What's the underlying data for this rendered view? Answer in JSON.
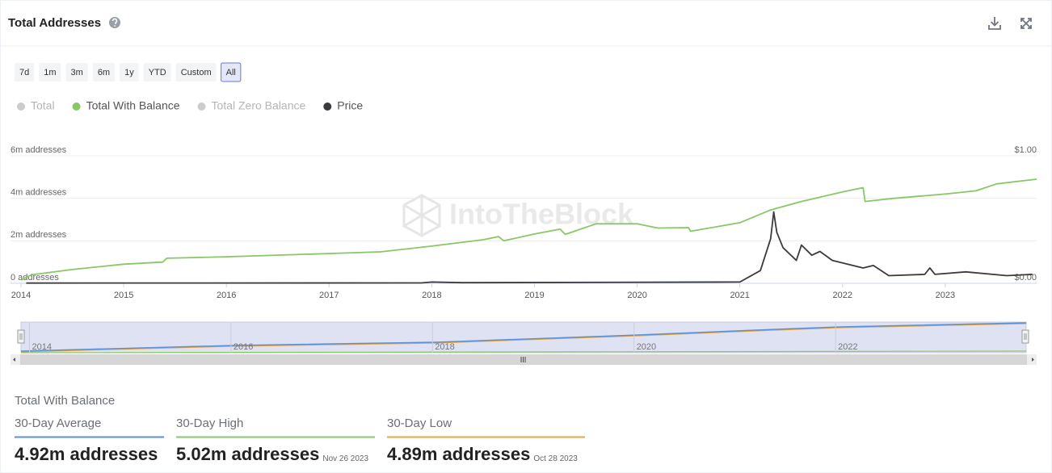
{
  "header": {
    "title": "Total Addresses"
  },
  "range_buttons": [
    "7d",
    "1m",
    "3m",
    "6m",
    "1y",
    "YTD",
    "Custom",
    "All"
  ],
  "selected_range_index": 7,
  "watermark": "IntoTheBlock",
  "chart_data": {
    "type": "line",
    "series": [
      {
        "name": "Total",
        "color": "#cccccc",
        "visible": false
      },
      {
        "name": "Total With Balance",
        "color": "#88c766",
        "x": [
          2014.0,
          2014.1,
          2014.5,
          2015.0,
          2015.38,
          2015.42,
          2016.0,
          2017.0,
          2017.5,
          2018.0,
          2018.5,
          2018.65,
          2018.7,
          2019.0,
          2019.25,
          2019.3,
          2019.6,
          2020.0,
          2020.2,
          2020.5,
          2020.52,
          2021.0,
          2021.3,
          2021.6,
          2022.0,
          2022.2,
          2022.22,
          2022.5,
          2023.0,
          2023.3,
          2023.5,
          2023.89
        ],
        "values": [
          150000,
          400000,
          650000,
          900000,
          1000000,
          1180000,
          1250000,
          1400000,
          1480000,
          1750000,
          2050000,
          2200000,
          2000000,
          2320000,
          2550000,
          2300000,
          2800000,
          2800000,
          2600000,
          2620000,
          2450000,
          2850000,
          3450000,
          3850000,
          4300000,
          4500000,
          3850000,
          4000000,
          4200000,
          4350000,
          4680000,
          4900000
        ]
      },
      {
        "name": "Total Zero Balance",
        "color": "#cccccc",
        "visible": false
      },
      {
        "name": "Price",
        "color": "#3a3a3f",
        "axis": "y2",
        "x": [
          2014.05,
          2017.9,
          2018.0,
          2018.3,
          2021.0,
          2021.2,
          2021.3,
          2021.33,
          2021.36,
          2021.42,
          2021.55,
          2021.6,
          2021.7,
          2021.78,
          2021.9,
          2022.0,
          2022.2,
          2022.3,
          2022.45,
          2022.8,
          2022.85,
          2022.9,
          2023.2,
          2023.6,
          2023.85
        ],
        "values": [
          0.002,
          0.003,
          0.01,
          0.005,
          0.01,
          0.1,
          0.35,
          0.56,
          0.4,
          0.28,
          0.18,
          0.3,
          0.22,
          0.25,
          0.18,
          0.16,
          0.12,
          0.14,
          0.06,
          0.07,
          0.12,
          0.07,
          0.09,
          0.06,
          0.07
        ]
      }
    ],
    "xlim": [
      2014,
      2023.89
    ],
    "xticks": [
      2014,
      2015,
      2016,
      2017,
      2018,
      2019,
      2020,
      2021,
      2022,
      2023
    ],
    "ylim": [
      0,
      6000000
    ],
    "yticks": [
      {
        "value": 0,
        "label": "0 addresses"
      },
      {
        "value": 2000000,
        "label": "2m addresses"
      },
      {
        "value": 4000000,
        "label": "4m addresses"
      },
      {
        "value": 6000000,
        "label": "6m addresses"
      }
    ],
    "y2lim": [
      0,
      1
    ],
    "y2ticks": [
      {
        "value": 0,
        "label": "$0.00"
      },
      {
        "value": 1,
        "label": "$1.00"
      }
    ],
    "grid": true
  },
  "navigator": {
    "ticks": [
      2014,
      2016,
      2018,
      2020,
      2022
    ]
  },
  "summary": {
    "title": "Total With Balance",
    "cards": [
      {
        "label": "30-Day Average",
        "value": "4.92m addresses",
        "color": "#5b8fd6"
      },
      {
        "label": "30-Day High",
        "value": "5.02m addresses",
        "date": "Nov 26 2023",
        "color": "#88c766"
      },
      {
        "label": "30-Day Low",
        "value": "4.89m addresses",
        "date": "Oct 28 2023",
        "color": "#e8a83c"
      }
    ]
  }
}
